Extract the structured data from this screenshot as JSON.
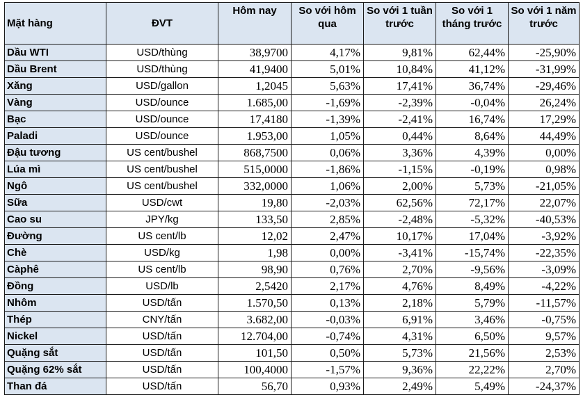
{
  "headers": [
    "Mặt hàng",
    "ĐVT",
    "Hôm nay",
    "So với hôm qua",
    "So với 1 tuần trước",
    "So với 1 tháng trước",
    "So với 1 năm trước"
  ],
  "rows": [
    {
      "name": "Dầu WTI",
      "unit": "USD/thùng",
      "today": "38,9700",
      "d1": "4,17%",
      "w1": "9,81%",
      "m1": "62,44%",
      "y1": "-25,90%"
    },
    {
      "name": "Dầu Brent",
      "unit": "USD/thùng",
      "today": "41,9400",
      "d1": "5,01%",
      "w1": "10,84%",
      "m1": "41,12%",
      "y1": "-31,99%"
    },
    {
      "name": "Xăng",
      "unit": "USD/gallon",
      "today": "1,2045",
      "d1": "5,63%",
      "w1": "17,41%",
      "m1": "36,74%",
      "y1": "-29,46%"
    },
    {
      "name": "Vàng",
      "unit": "USD/ounce",
      "today": "1.685,00",
      "d1": "-1,69%",
      "w1": "-2,39%",
      "m1": "-0,04%",
      "y1": "26,24%"
    },
    {
      "name": "Bạc",
      "unit": "USD/ounce",
      "today": "17,4180",
      "d1": "-1,39%",
      "w1": "-2,41%",
      "m1": "16,74%",
      "y1": "17,29%"
    },
    {
      "name": "Paladi",
      "unit": "USD/ounce",
      "today": "1.953,00",
      "d1": "1,05%",
      "w1": "0,44%",
      "m1": "8,64%",
      "y1": "44,49%"
    },
    {
      "name": "Đậu tương",
      "unit": "US cent/bushel",
      "today": "868,7500",
      "d1": "0,06%",
      "w1": "3,36%",
      "m1": "4,39%",
      "y1": "0,00%"
    },
    {
      "name": "Lúa mì",
      "unit": "US cent/bushel",
      "today": "515,0000",
      "d1": "-1,86%",
      "w1": "-1,15%",
      "m1": "-0,19%",
      "y1": "0,98%"
    },
    {
      "name": "Ngô",
      "unit": "US cent/bushel",
      "today": "332,0000",
      "d1": "1,06%",
      "w1": "2,00%",
      "m1": "5,73%",
      "y1": "-21,05%"
    },
    {
      "name": "Sữa",
      "unit": "USD/cwt",
      "today": "19,80",
      "d1": "-2,03%",
      "w1": "62,56%",
      "m1": "72,17%",
      "y1": "22,07%"
    },
    {
      "name": "Cao su",
      "unit": "JPY/kg",
      "today": "133,50",
      "d1": "2,85%",
      "w1": "-2,48%",
      "m1": "-5,32%",
      "y1": "-40,53%"
    },
    {
      "name": "Đường",
      "unit": "US cent/lb",
      "today": "12,02",
      "d1": "2,47%",
      "w1": "10,17%",
      "m1": "17,04%",
      "y1": "-3,92%"
    },
    {
      "name": "Chè",
      "unit": "USD/kg",
      "today": "1,98",
      "d1": "0,00%",
      "w1": "-3,41%",
      "m1": "-15,74%",
      "y1": "-22,35%"
    },
    {
      "name": "Càphê",
      "unit": "US cent/lb",
      "today": "98,90",
      "d1": "0,76%",
      "w1": "2,70%",
      "m1": "-9,56%",
      "y1": "-3,09%"
    },
    {
      "name": "Đồng",
      "unit": "USD/lb",
      "today": "2,5420",
      "d1": "2,17%",
      "w1": "4,76%",
      "m1": "8,49%",
      "y1": "-4,22%"
    },
    {
      "name": "Nhôm",
      "unit": "USD/tấn",
      "today": "1.570,50",
      "d1": "0,13%",
      "w1": "2,18%",
      "m1": "5,79%",
      "y1": "-11,57%"
    },
    {
      "name": "Thép",
      "unit": "CNY/tấn",
      "today": "3.682,00",
      "d1": "-0,03%",
      "w1": "6,91%",
      "m1": "3,46%",
      "y1": "-0,75%"
    },
    {
      "name": "Nickel",
      "unit": "USD/tấn",
      "today": "12.704,00",
      "d1": "-0,74%",
      "w1": "4,31%",
      "m1": "6,50%",
      "y1": "9,57%"
    },
    {
      "name": "Quặng sắt",
      "unit": "USD/tấn",
      "today": "101,50",
      "d1": "0,50%",
      "w1": "5,73%",
      "m1": "21,56%",
      "y1": "2,53%"
    },
    {
      "name": "Quặng 62% sắt",
      "unit": "USD/tấn",
      "today": "100,4000",
      "d1": "-1,57%",
      "w1": "9,36%",
      "m1": "22,22%",
      "y1": "2,70%"
    },
    {
      "name": "Than đá",
      "unit": "USD/tấn",
      "today": "56,70",
      "d1": "0,93%",
      "w1": "2,49%",
      "m1": "5,49%",
      "y1": "-24,37%"
    }
  ]
}
